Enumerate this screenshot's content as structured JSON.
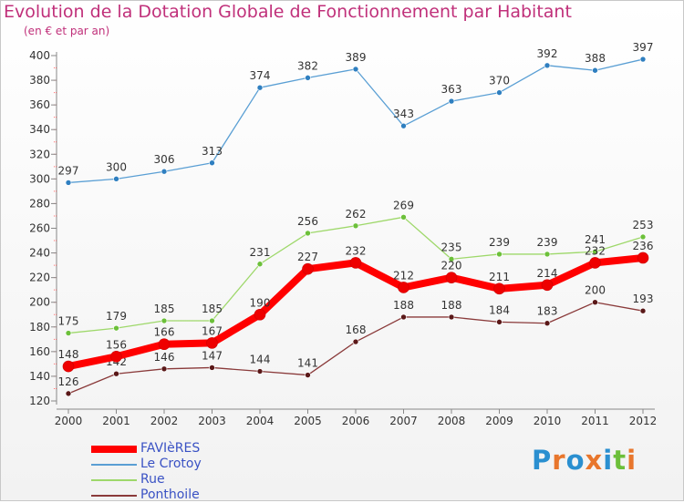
{
  "title": "Evolution de la Dotation Globale de Fonctionnement par Habitant",
  "subtitle": "(en € et par an)",
  "logo": {
    "text": "Proxiti",
    "letters": [
      "P",
      "r",
      "o",
      "x",
      "i",
      "t",
      "i"
    ],
    "colors": [
      "#2a8fd0",
      "#e8762c",
      "#2a8fd0",
      "#e8762c",
      "#2a8fd0",
      "#6cbf3a",
      "#e8762c"
    ]
  },
  "chart_data": {
    "type": "line",
    "title": "Evolution de la Dotation Globale de Fonctionnement par Habitant",
    "subtitle": "(en € et par an)",
    "xlabel": "",
    "ylabel": "",
    "x": [
      "2000",
      "2001",
      "2002",
      "2003",
      "2004",
      "2005",
      "2006",
      "2007",
      "2008",
      "2009",
      "2010",
      "2011",
      "2012"
    ],
    "ylim": [
      120,
      400
    ],
    "yticks": [
      "120",
      "140",
      "160",
      "180",
      "200",
      "220",
      "240",
      "260",
      "280",
      "300",
      "320",
      "340",
      "360",
      "380",
      "400"
    ],
    "grid": false,
    "legend_position": "bottom-left",
    "series": [
      {
        "name": "Le Crotoy",
        "color": "#5a9fd4",
        "marker": "#2f7fc0",
        "width": 1.3,
        "values": [
          297,
          300,
          306,
          313,
          374,
          382,
          389,
          343,
          363,
          370,
          392,
          388,
          397
        ],
        "labels": [
          "297",
          "300",
          "306",
          "313",
          "374",
          "382",
          "389",
          "343",
          "363",
          "370",
          "392",
          "388",
          "397"
        ]
      },
      {
        "name": "Rue",
        "color": "#9ed86a",
        "marker": "#6cc03a",
        "width": 1.3,
        "values": [
          175,
          179,
          185,
          185,
          231,
          256,
          262,
          269,
          235,
          239,
          239,
          241,
          253
        ],
        "labels": [
          "175",
          "179",
          "185",
          "185",
          "231",
          "256",
          "262",
          "269",
          "235",
          "239",
          "239",
          "241",
          "253"
        ]
      },
      {
        "name": "Ponthoile",
        "color": "#8a3a3a",
        "marker": "#5a1818",
        "width": 1.3,
        "values": [
          126,
          142,
          146,
          147,
          144,
          141,
          168,
          188,
          188,
          184,
          183,
          200,
          193
        ],
        "labels": [
          "126",
          "142",
          "146",
          "147",
          "144",
          "141",
          "168",
          "188",
          "188",
          "184",
          "183",
          "200",
          "193"
        ]
      },
      {
        "name": "FAVIèRES",
        "color": "#ff0000",
        "marker": "#ee0000",
        "width": 8,
        "values": [
          148,
          156,
          166,
          167,
          190,
          227,
          232,
          212,
          220,
          211,
          214,
          232,
          236
        ],
        "labels": [
          "148",
          "156",
          "166",
          "167",
          "190",
          "227",
          "232",
          "212",
          "220",
          "211",
          "214",
          "232",
          "236"
        ]
      }
    ]
  },
  "legend": [
    {
      "label": "FAVIèRES",
      "color": "#ff0000",
      "thick": true
    },
    {
      "label": "Le Crotoy",
      "color": "#5a9fd4",
      "thick": false
    },
    {
      "label": "Rue",
      "color": "#9ed86a",
      "thick": false
    },
    {
      "label": "Ponthoile",
      "color": "#8a3a3a",
      "thick": false
    }
  ]
}
